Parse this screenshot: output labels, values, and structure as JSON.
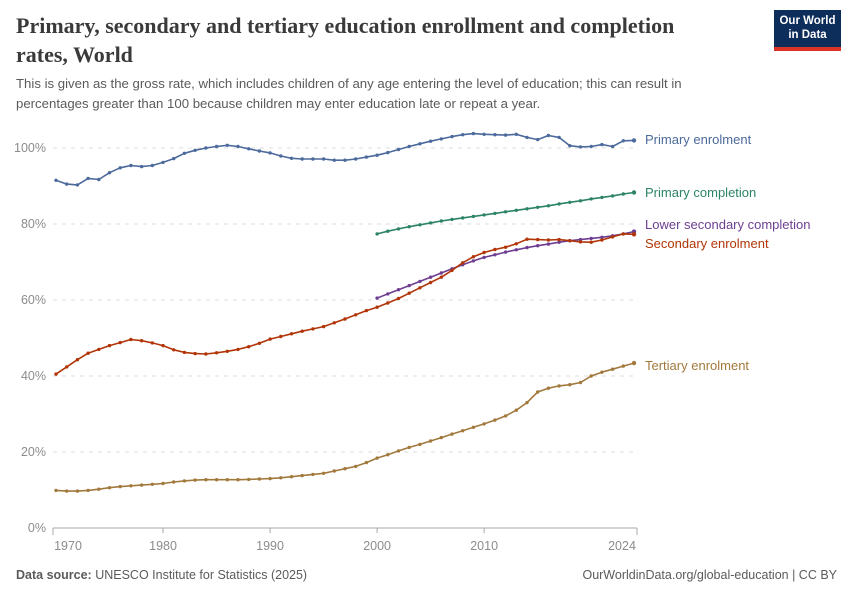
{
  "header": {
    "title_lines": [
      "Primary, secondary and tertiary education enrollment and completion",
      "rates, World"
    ],
    "subtitle_lines": [
      "This is given as the gross rate, which includes children of any age entering the level of education; this can result in",
      "percentages greater than 100 because children may enter education late or repeat a year."
    ],
    "logo_lines": [
      "Our World",
      "in Data"
    ],
    "logo_bg_color": "#0d2d5a",
    "logo_accent_color": "#dc3328"
  },
  "chart_data": {
    "type": "line",
    "title": "Primary, secondary and tertiary education enrollment and completion rates, World",
    "xlabel": "",
    "ylabel": "",
    "xlim": [
      1970,
      2024
    ],
    "ylim": [
      0,
      107
    ],
    "grid": "horizontal-dashed",
    "legend_position": "right-of-line-ends",
    "x_ticks": [
      1970,
      1980,
      1990,
      2000,
      2010,
      2024
    ],
    "y_ticks": [
      0,
      20,
      40,
      60,
      80,
      100
    ],
    "y_tick_labels": [
      "0%",
      "20%",
      "40%",
      "60%",
      "80%",
      "100%"
    ],
    "series": [
      {
        "name": "Primary enrolment",
        "color": "#4c6a9c",
        "start_year": 1970,
        "label_dy": 0,
        "values": [
          91.5,
          90.5,
          90.3,
          92.0,
          91.7,
          93.5,
          94.8,
          95.4,
          95.1,
          95.4,
          96.2,
          97.2,
          98.6,
          99.4,
          100.0,
          100.4,
          100.7,
          100.4,
          99.8,
          99.2,
          98.7,
          97.9,
          97.3,
          97.1,
          97.1,
          97.1,
          96.8,
          96.8,
          97.1,
          97.6,
          98.1,
          98.8,
          99.6,
          100.4,
          101.1,
          101.8,
          102.4,
          103.0,
          103.5,
          103.8,
          103.6,
          103.5,
          103.4,
          103.6,
          102.8,
          102.2,
          103.3,
          102.8,
          100.6,
          100.3,
          100.4,
          100.9,
          100.4,
          101.9,
          102.0
        ]
      },
      {
        "name": "Primary completion",
        "color": "#2c8465",
        "start_year": 2000,
        "label_dy": 1,
        "values": [
          77.4,
          78.1,
          78.7,
          79.3,
          79.8,
          80.3,
          80.8,
          81.2,
          81.6,
          82.0,
          82.4,
          82.8,
          83.2,
          83.6,
          84.0,
          84.4,
          84.8,
          85.3,
          85.7,
          86.1,
          86.6,
          87.0,
          87.4,
          87.9,
          88.3
        ]
      },
      {
        "name": "Lower secondary completion",
        "color": "#6d3e91",
        "start_year": 2000,
        "label_dy": -7,
        "values": [
          60.5,
          61.6,
          62.7,
          63.8,
          64.9,
          66.0,
          67.1,
          68.2,
          69.3,
          70.3,
          71.2,
          71.9,
          72.6,
          73.2,
          73.8,
          74.3,
          74.7,
          75.2,
          75.6,
          75.9,
          76.2,
          76.5,
          76.9,
          77.4,
          78.0
        ]
      },
      {
        "name": "Secondary enrolment",
        "color": "#b13507",
        "start_year": 1970,
        "label_dy": 10,
        "values": [
          40.5,
          42.4,
          44.3,
          46.0,
          47.0,
          48.0,
          48.8,
          49.6,
          49.3,
          48.7,
          48.0,
          46.9,
          46.2,
          45.9,
          45.8,
          46.1,
          46.5,
          47.0,
          47.7,
          48.6,
          49.7,
          50.4,
          51.1,
          51.8,
          52.4,
          53.0,
          54.0,
          55.0,
          56.1,
          57.2,
          58.1,
          59.2,
          60.4,
          61.8,
          63.2,
          64.6,
          66.0,
          67.8,
          69.8,
          71.4,
          72.5,
          73.3,
          73.9,
          74.8,
          76.0,
          75.9,
          75.8,
          75.9,
          75.6,
          75.3,
          75.2,
          75.8,
          76.6,
          77.4,
          77.3
        ]
      },
      {
        "name": "Tertiary enrolment",
        "color": "#a2793d",
        "start_year": 1970,
        "label_dy": 3,
        "values": [
          9.9,
          9.7,
          9.7,
          9.9,
          10.2,
          10.6,
          10.9,
          11.1,
          11.3,
          11.5,
          11.7,
          12.1,
          12.4,
          12.6,
          12.7,
          12.7,
          12.7,
          12.7,
          12.8,
          12.9,
          13.0,
          13.2,
          13.5,
          13.8,
          14.1,
          14.4,
          15.0,
          15.6,
          16.2,
          17.2,
          18.4,
          19.3,
          20.3,
          21.2,
          22.0,
          22.9,
          23.8,
          24.7,
          25.6,
          26.5,
          27.4,
          28.4,
          29.5,
          31.0,
          33.0,
          35.8,
          36.8,
          37.4,
          37.7,
          38.3,
          40.0,
          41.0,
          41.8,
          42.6,
          43.4
        ]
      }
    ]
  },
  "footer": {
    "source_label": "Data source:",
    "source_text": " UNESCO Institute for Statistics (2025)",
    "link_text": "OurWorldinData.org/global-education | CC BY"
  }
}
